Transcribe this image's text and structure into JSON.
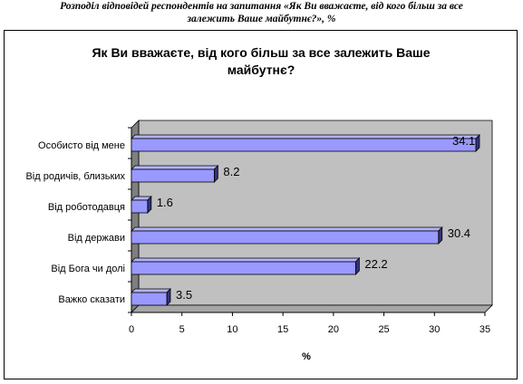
{
  "caption": {
    "line1": "Розподіл відповідей респондентів на запитання «Як Ви вважаєте, від кого більш за все",
    "line2": "залежить Ваше майбутнє?», %"
  },
  "chart_data": {
    "type": "bar",
    "orientation": "horizontal",
    "title_line1": "Як Ви вважаєте, від кого більш за все залежить Ваше",
    "title_line2": "майбутнє?",
    "categories": [
      "Особисто від мене",
      "Від родичів, близьких",
      "Від роботодавця",
      "Від держави",
      "Від Бога чи долі",
      "Важко сказати"
    ],
    "values": [
      34.1,
      8.2,
      1.6,
      30.4,
      22.2,
      3.5
    ],
    "value_labels": [
      "34.1",
      "8.2",
      "1.6",
      "30.4",
      "22.2",
      "3.5"
    ],
    "xlabel": "%",
    "ylabel": "",
    "xlim": [
      0,
      35
    ],
    "xticks": [
      "0",
      "5",
      "10",
      "15",
      "20",
      "25",
      "30",
      "35"
    ],
    "grid": false,
    "legend": "none",
    "colors": {
      "bar_front": "#9999ff",
      "bar_top": "#b3b3ff",
      "bar_side": "#33337a",
      "wall": "#c0c0c0",
      "side_wall": "#7f7f7f"
    }
  }
}
